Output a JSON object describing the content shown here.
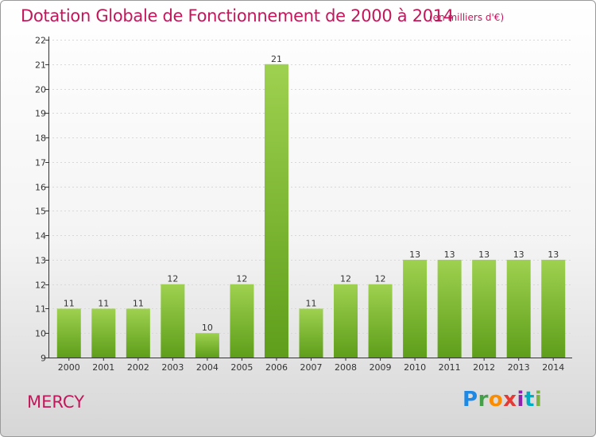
{
  "chart_data": {
    "type": "bar",
    "title": "Dotation Globale de Fonctionnement de 2000 à 2014",
    "subtitle": "(en milliers d'€)",
    "categories": [
      "2000",
      "2001",
      "2002",
      "2003",
      "2004",
      "2005",
      "2006",
      "2007",
      "2008",
      "2009",
      "2010",
      "2011",
      "2012",
      "2013",
      "2014"
    ],
    "values": [
      11,
      11,
      11,
      12,
      10,
      12,
      21,
      11,
      12,
      12,
      13,
      13,
      13,
      13,
      13
    ],
    "yticks": [
      "9",
      "10",
      "11",
      "12",
      "13",
      "14",
      "15",
      "16",
      "17",
      "18",
      "19",
      "20",
      "21",
      "22"
    ],
    "ylim": [
      9,
      22
    ],
    "xlabel": "",
    "ylabel": "",
    "bar_color_top": "#9ed14f",
    "bar_color_bottom": "#5e9e1a"
  },
  "footer": {
    "commune": "MERCY",
    "logo": {
      "p": "P",
      "r": "r",
      "o": "o",
      "x": "x",
      "i": "i",
      "t": "t",
      "i2": "i"
    }
  }
}
